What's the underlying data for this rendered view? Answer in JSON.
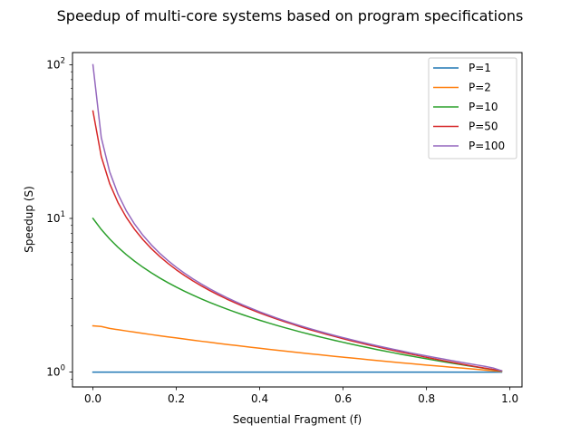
{
  "chart_data": {
    "type": "line",
    "title": "Speedup of multi-core systems based on program specifications",
    "xlabel": "Sequential Fragment (f)",
    "ylabel": "Speedup (S)",
    "xlim": [
      -0.049,
      1.029
    ],
    "ylim": [
      0.8,
      120
    ],
    "yscale": "log",
    "grid": false,
    "legend_position": "top-right",
    "x_ticks": [
      {
        "value": 0.0,
        "label": "0.0"
      },
      {
        "value": 0.2,
        "label": "0.2"
      },
      {
        "value": 0.4,
        "label": "0.4"
      },
      {
        "value": 0.6,
        "label": "0.6"
      },
      {
        "value": 0.8,
        "label": "0.8"
      },
      {
        "value": 1.0,
        "label": "1.0"
      }
    ],
    "y_ticks": [
      {
        "value": 1,
        "base": "10",
        "exp": "0"
      },
      {
        "value": 10,
        "base": "10",
        "exp": "1"
      },
      {
        "value": 100,
        "base": "10",
        "exp": "2"
      }
    ],
    "x": [
      0.0,
      0.02,
      0.04,
      0.06,
      0.08,
      0.1,
      0.12,
      0.14,
      0.16,
      0.18,
      0.2,
      0.22,
      0.24,
      0.26,
      0.28,
      0.3,
      0.32,
      0.34,
      0.36,
      0.38,
      0.4,
      0.42,
      0.44,
      0.46,
      0.48,
      0.5,
      0.52,
      0.54,
      0.56,
      0.58,
      0.6,
      0.62,
      0.64,
      0.66,
      0.68,
      0.7,
      0.72,
      0.74,
      0.76,
      0.78,
      0.8,
      0.82,
      0.84,
      0.86,
      0.88,
      0.9,
      0.92,
      0.94,
      0.96,
      0.98
    ],
    "series": [
      {
        "name": "P=1",
        "color": "#1f77b4",
        "values": [
          1.0,
          1.0,
          1.0,
          1.0,
          1.0,
          1.0,
          1.0,
          1.0,
          1.0,
          1.0,
          1.0,
          1.0,
          1.0,
          1.0,
          1.0,
          1.0,
          1.0,
          1.0,
          1.0,
          1.0,
          1.0,
          1.0,
          1.0,
          1.0,
          1.0,
          1.0,
          1.0,
          1.0,
          1.0,
          1.0,
          1.0,
          1.0,
          1.0,
          1.0,
          1.0,
          1.0,
          1.0,
          1.0,
          1.0,
          1.0,
          1.0,
          1.0,
          1.0,
          1.0,
          1.0,
          1.0,
          1.0,
          1.0,
          1.0,
          1.0
        ]
      },
      {
        "name": "P=2",
        "color": "#ff7f0e",
        "values": [
          2.0,
          1.98,
          1.923,
          1.887,
          1.852,
          1.818,
          1.786,
          1.754,
          1.724,
          1.695,
          1.667,
          1.639,
          1.613,
          1.587,
          1.563,
          1.538,
          1.515,
          1.493,
          1.471,
          1.449,
          1.429,
          1.408,
          1.389,
          1.37,
          1.351,
          1.333,
          1.316,
          1.299,
          1.282,
          1.266,
          1.25,
          1.235,
          1.22,
          1.205,
          1.19,
          1.176,
          1.163,
          1.149,
          1.136,
          1.124,
          1.111,
          1.099,
          1.087,
          1.075,
          1.064,
          1.053,
          1.042,
          1.031,
          1.02,
          1.01
        ]
      },
      {
        "name": "P=10",
        "color": "#2ca02c",
        "values": [
          10.0,
          8.475,
          7.353,
          6.494,
          5.814,
          5.263,
          4.808,
          4.425,
          4.098,
          3.817,
          3.571,
          3.356,
          3.165,
          2.994,
          2.841,
          2.703,
          2.577,
          2.463,
          2.358,
          2.262,
          2.174,
          2.092,
          2.016,
          1.946,
          1.88,
          1.818,
          1.761,
          1.706,
          1.656,
          1.608,
          1.563,
          1.52,
          1.479,
          1.441,
          1.404,
          1.37,
          1.337,
          1.305,
          1.276,
          1.247,
          1.22,
          1.193,
          1.168,
          1.144,
          1.121,
          1.099,
          1.078,
          1.057,
          1.038,
          1.018
        ]
      },
      {
        "name": "P=50",
        "color": "#d62728",
        "values": [
          50.0,
          25.253,
          16.892,
          12.69,
          10.163,
          8.475,
          7.267,
          6.361,
          5.656,
          5.092,
          4.63,
          4.245,
          3.918,
          3.638,
          3.395,
          3.183,
          2.996,
          2.83,
          2.682,
          2.549,
          2.427,
          2.317,
          2.218,
          2.127,
          2.043,
          1.96,
          1.889,
          1.824,
          1.762,
          1.704,
          1.647,
          1.597,
          1.55,
          1.505,
          1.463,
          1.422,
          1.383,
          1.347,
          1.312,
          1.279,
          1.247,
          1.216,
          1.187,
          1.159,
          1.133,
          1.107,
          1.082,
          1.06,
          1.04,
          1.02
        ]
      },
      {
        "name": "P=100",
        "color": "#9467bd",
        "values": [
          100.0,
          33.557,
          20.16,
          14.409,
          11.211,
          9.174,
          7.764,
          6.729,
          5.938,
          5.313,
          4.808,
          4.391,
          4.04,
          3.741,
          3.484,
          3.26,
          3.063,
          2.889,
          2.734,
          2.594,
          2.469,
          2.356,
          2.252,
          2.158,
          2.072,
          1.992,
          1.919,
          1.851,
          1.788,
          1.729,
          1.675,
          1.623,
          1.575,
          1.53,
          1.487,
          1.447,
          1.408,
          1.372,
          1.337,
          1.305,
          1.274,
          1.244,
          1.216,
          1.188,
          1.162,
          1.137,
          1.113,
          1.09,
          1.063,
          1.02
        ]
      }
    ]
  }
}
